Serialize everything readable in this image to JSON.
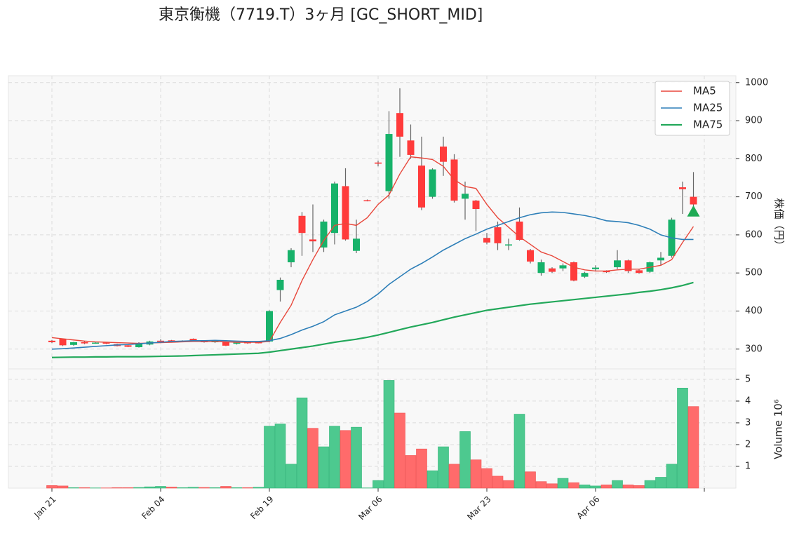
{
  "chart_data": {
    "type": "candlestick",
    "title": "東京衡機（7719.T）3ヶ月 [GC_SHORT_MID]",
    "ylabel": "株価（円）",
    "ylim": [
      248,
      1018
    ],
    "yticks": [
      300,
      400,
      500,
      600,
      700,
      800,
      900,
      1000
    ],
    "grid": true,
    "legend": "upper right",
    "up_color": "#17b26a",
    "down_color": "#ff3b3b",
    "categories": [
      "Jan 21",
      null,
      null,
      null,
      null,
      null,
      null,
      null,
      null,
      null,
      "Feb 04",
      null,
      null,
      null,
      null,
      null,
      null,
      null,
      null,
      null,
      "Feb 19",
      null,
      null,
      null,
      null,
      null,
      null,
      null,
      null,
      null,
      "Mar 06",
      null,
      null,
      null,
      null,
      null,
      null,
      null,
      null,
      null,
      "Mar 23",
      null,
      null,
      null,
      null,
      null,
      null,
      null,
      null,
      null,
      "Apr 06",
      null,
      null,
      null,
      null,
      null,
      null,
      null,
      null,
      null
    ],
    "open": [
      322,
      327,
      311,
      318,
      315,
      317,
      313,
      310,
      305,
      312,
      322,
      323,
      320,
      327,
      321,
      318,
      319,
      314,
      318,
      318,
      320,
      455,
      528,
      650,
      588,
      567,
      605,
      728,
      558,
      691,
      790,
      715,
      920,
      848,
      782,
      700,
      832,
      798,
      695,
      690,
      592,
      620,
      572,
      635,
      560,
      500,
      512,
      512,
      528,
      490,
      510,
      505,
      515,
      533,
      507,
      503,
      533,
      545,
      725,
      700
    ],
    "high": [
      324,
      328,
      319,
      320,
      318,
      318,
      314,
      312,
      318,
      322,
      326,
      324,
      323,
      328,
      323,
      324,
      320,
      318,
      319,
      320,
      402,
      488,
      565,
      660,
      680,
      640,
      740,
      775,
      640,
      693,
      795,
      925,
      985,
      890,
      858,
      775,
      858,
      812,
      740,
      692,
      605,
      635,
      590,
      672,
      563,
      535,
      515,
      525,
      530,
      503,
      520,
      507,
      560,
      535,
      510,
      530,
      555,
      645,
      740,
      765
    ],
    "low": [
      316,
      308,
      309,
      313,
      314,
      313,
      307,
      305,
      304,
      310,
      318,
      317,
      318,
      320,
      317,
      316,
      308,
      312,
      314,
      315,
      318,
      425,
      515,
      545,
      555,
      555,
      575,
      585,
      552,
      688,
      780,
      695,
      805,
      800,
      665,
      695,
      755,
      685,
      640,
      610,
      575,
      560,
      560,
      585,
      525,
      493,
      500,
      505,
      478,
      487,
      505,
      500,
      510,
      500,
      498,
      500,
      520,
      540,
      655,
      672
    ],
    "close": [
      318,
      310,
      318,
      315,
      317,
      315,
      308,
      306,
      314,
      320,
      320,
      319,
      321,
      322,
      318,
      322,
      309,
      317,
      316,
      317,
      400,
      482,
      560,
      605,
      583,
      635,
      735,
      588,
      590,
      689,
      787,
      865,
      858,
      810,
      672,
      772,
      792,
      690,
      708,
      668,
      580,
      578,
      575,
      587,
      530,
      528,
      503,
      520,
      480,
      500,
      514,
      502,
      533,
      505,
      500,
      528,
      540,
      640,
      720,
      680
    ],
    "lines": [
      {
        "name": "MA5",
        "color": "#e8473b",
        "width": 1.4,
        "values": [
          330,
          327,
          324,
          321,
          319,
          318,
          317,
          316,
          315,
          316,
          317,
          318,
          319,
          320,
          320,
          320,
          319,
          318,
          318,
          318,
          320,
          370,
          415,
          480,
          535,
          585,
          625,
          630,
          625,
          645,
          680,
          705,
          760,
          805,
          802,
          798,
          780,
          745,
          727,
          722,
          680,
          645,
          620,
          595,
          575,
          555,
          545,
          530,
          515,
          508,
          505,
          505,
          508,
          510,
          510,
          515,
          520,
          535,
          580,
          622
        ]
      },
      {
        "name": "MA25",
        "color": "#2e7fb8",
        "width": 1.6,
        "values": [
          300,
          301,
          303,
          305,
          307,
          309,
          311,
          312,
          314,
          316,
          318,
          320,
          321,
          322,
          322,
          323,
          322,
          321,
          320,
          320,
          322,
          328,
          338,
          350,
          360,
          372,
          390,
          400,
          410,
          425,
          445,
          470,
          490,
          510,
          525,
          542,
          560,
          575,
          590,
          602,
          615,
          625,
          635,
          645,
          653,
          658,
          660,
          659,
          655,
          651,
          645,
          637,
          635,
          632,
          625,
          615,
          600,
          592,
          588,
          588
        ]
      },
      {
        "name": "MA75",
        "color": "#22a85a",
        "width": 2.2,
        "values": [
          278,
          278.5,
          279,
          279,
          279.5,
          279.5,
          280,
          280,
          280,
          280.5,
          281,
          281.5,
          282,
          283,
          284,
          285,
          286,
          287,
          288,
          289,
          292,
          296,
          300,
          304,
          308,
          313,
          318,
          322,
          326,
          331,
          337,
          344,
          351,
          358,
          364,
          370,
          377,
          384,
          390,
          396,
          402,
          406,
          410,
          414,
          418,
          421,
          424,
          427,
          430,
          433,
          436,
          439,
          442,
          445,
          449,
          452,
          456,
          461,
          467,
          475
        ]
      }
    ],
    "signal": {
      "color": "#1faa55",
      "values": [
        null,
        null,
        null,
        null,
        null,
        null,
        null,
        null,
        null,
        null,
        null,
        null,
        null,
        null,
        null,
        null,
        null,
        null,
        null,
        null,
        null,
        null,
        null,
        null,
        null,
        null,
        null,
        null,
        null,
        null,
        null,
        null,
        null,
        null,
        null,
        null,
        null,
        null,
        null,
        null,
        null,
        null,
        null,
        null,
        null,
        null,
        null,
        null,
        null,
        null,
        null,
        null,
        null,
        null,
        null,
        null,
        null,
        null,
        null,
        661
      ]
    },
    "volume": {
      "label": "Volume  10⁶",
      "ylim": [
        0,
        5.48
      ],
      "yticks": [
        1,
        2,
        3,
        4,
        5
      ],
      "up_color": "#4dc98f",
      "down_color": "#ff6b6b",
      "values": [
        0.12,
        0.1,
        0.02,
        0.02,
        0.01,
        0.01,
        0.02,
        0.02,
        0.03,
        0.06,
        0.08,
        0.05,
        0.02,
        0.04,
        0.03,
        0.02,
        0.08,
        0.02,
        0.02,
        0.04,
        2.85,
        2.95,
        1.1,
        4.15,
        2.75,
        1.9,
        2.85,
        2.65,
        2.8,
        0.01,
        0.35,
        4.95,
        3.45,
        1.5,
        1.8,
        0.8,
        1.9,
        1.1,
        2.6,
        1.3,
        0.9,
        0.55,
        0.35,
        3.4,
        0.75,
        0.3,
        0.2,
        0.45,
        0.25,
        0.15,
        0.1,
        0.15,
        0.35,
        0.15,
        0.12,
        0.35,
        0.5,
        1.1,
        4.6,
        3.75
      ]
    }
  }
}
